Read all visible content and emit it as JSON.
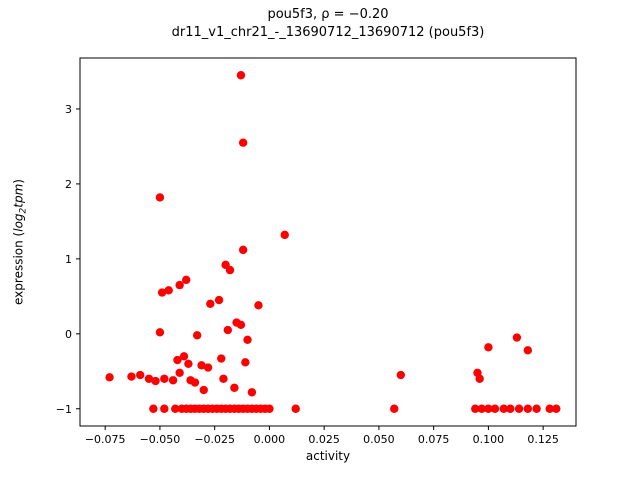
{
  "figure": {
    "title_line1": "pou5f3, ρ = −0.20",
    "title_line2": "dr11_v1_chr21_-_13690712_13690712 (pou5f3)",
    "xlabel": "activity",
    "ylabel": {
      "prefix": "expression (",
      "word1": "log",
      "sub": "2",
      "word2": "tpm",
      "suffix": ")"
    }
  },
  "chart_data": {
    "type": "scatter",
    "title": "pou5f3, ρ = −0.20",
    "subtitle": "dr11_v1_chr21_-_13690712_13690712 (pou5f3)",
    "xlabel": "activity",
    "ylabel": "expression (log2tpm)",
    "marker_color": "#ff0000",
    "grid": false,
    "legend": "none",
    "xlim": [
      -0.0865,
      0.14
    ],
    "ylim": [
      -1.23,
      3.68
    ],
    "xticks": [
      -0.075,
      -0.05,
      -0.025,
      0.0,
      0.025,
      0.05,
      0.075,
      0.1,
      0.125
    ],
    "yticks": [
      -1,
      0,
      1,
      2,
      3
    ],
    "points": [
      [
        -0.053,
        -1.0
      ],
      [
        -0.048,
        -1.0
      ],
      [
        -0.043,
        -1.0
      ],
      [
        -0.04,
        -1.0
      ],
      [
        -0.038,
        -1.0
      ],
      [
        -0.036,
        -1.0
      ],
      [
        -0.034,
        -1.0
      ],
      [
        -0.032,
        -1.0
      ],
      [
        -0.03,
        -1.0
      ],
      [
        -0.028,
        -1.0
      ],
      [
        -0.026,
        -1.0
      ],
      [
        -0.024,
        -1.0
      ],
      [
        -0.022,
        -1.0
      ],
      [
        -0.02,
        -1.0
      ],
      [
        -0.018,
        -1.0
      ],
      [
        -0.016,
        -1.0
      ],
      [
        -0.014,
        -1.0
      ],
      [
        -0.012,
        -1.0
      ],
      [
        -0.01,
        -1.0
      ],
      [
        -0.008,
        -1.0
      ],
      [
        -0.006,
        -1.0
      ],
      [
        -0.004,
        -1.0
      ],
      [
        -0.002,
        -1.0
      ],
      [
        0.0,
        -1.0
      ],
      [
        0.012,
        -1.0
      ],
      [
        0.057,
        -1.0
      ],
      [
        0.094,
        -1.0
      ],
      [
        0.097,
        -1.0
      ],
      [
        0.1,
        -1.0
      ],
      [
        0.103,
        -1.0
      ],
      [
        0.107,
        -1.0
      ],
      [
        0.11,
        -1.0
      ],
      [
        0.114,
        -1.0
      ],
      [
        0.118,
        -1.0
      ],
      [
        0.122,
        -1.0
      ],
      [
        0.128,
        -1.0
      ],
      [
        0.131,
        -1.0
      ],
      [
        -0.013,
        3.45
      ],
      [
        -0.012,
        2.55
      ],
      [
        -0.05,
        1.82
      ],
      [
        0.007,
        1.32
      ],
      [
        -0.012,
        1.12
      ],
      [
        -0.02,
        0.92
      ],
      [
        -0.018,
        0.85
      ],
      [
        -0.038,
        0.72
      ],
      [
        -0.041,
        0.65
      ],
      [
        -0.049,
        0.55
      ],
      [
        -0.046,
        0.58
      ],
      [
        -0.027,
        0.4
      ],
      [
        -0.023,
        0.45
      ],
      [
        -0.005,
        0.38
      ],
      [
        -0.015,
        0.15
      ],
      [
        -0.013,
        0.12
      ],
      [
        -0.019,
        0.05
      ],
      [
        -0.05,
        0.02
      ],
      [
        -0.033,
        -0.02
      ],
      [
        -0.01,
        -0.08
      ],
      [
        0.113,
        -0.05
      ],
      [
        0.1,
        -0.18
      ],
      [
        0.118,
        -0.22
      ],
      [
        -0.039,
        -0.3
      ],
      [
        -0.042,
        -0.35
      ],
      [
        -0.022,
        -0.33
      ],
      [
        -0.011,
        -0.38
      ],
      [
        -0.037,
        -0.4
      ],
      [
        -0.031,
        -0.42
      ],
      [
        -0.028,
        -0.45
      ],
      [
        0.095,
        -0.52
      ],
      [
        0.06,
        -0.55
      ],
      [
        -0.063,
        -0.57
      ],
      [
        -0.059,
        -0.55
      ],
      [
        -0.073,
        -0.58
      ],
      [
        0.096,
        -0.6
      ],
      [
        -0.055,
        -0.6
      ],
      [
        -0.052,
        -0.63
      ],
      [
        -0.048,
        -0.6
      ],
      [
        -0.044,
        -0.62
      ],
      [
        -0.041,
        -0.52
      ],
      [
        -0.036,
        -0.62
      ],
      [
        -0.034,
        -0.65
      ],
      [
        -0.021,
        -0.6
      ],
      [
        -0.016,
        -0.72
      ],
      [
        -0.03,
        -0.75
      ],
      [
        -0.008,
        -0.78
      ]
    ]
  }
}
